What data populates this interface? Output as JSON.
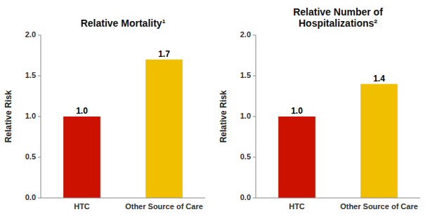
{
  "chart_data": [
    {
      "type": "bar",
      "title": "Relative Mortality¹",
      "categories": [
        "HTC",
        "Other Source of Care"
      ],
      "values": [
        1.0,
        1.7
      ],
      "value_labels": [
        "1.0",
        "1.7"
      ],
      "data_labels": true,
      "colors": [
        "#cc1100",
        "#f0c000"
      ],
      "ylabel": "Relative Risk",
      "ylim": [
        0,
        2.0
      ],
      "yticks": [
        {
          "value": 0.0,
          "label": "0.0"
        },
        0.5,
        {
          "value": 1.0,
          "label": "1.0"
        },
        1.5,
        {
          "value": 2.0,
          "label": "2.0"
        }
      ],
      "grid": false
    },
    {
      "type": "bar",
      "title": "Relative Number of\nHospitalizations²",
      "categories": [
        "HTC",
        "Other Source of Care"
      ],
      "values": [
        1.0,
        1.4
      ],
      "value_labels": [
        "1.0",
        "1.4"
      ],
      "data_labels": true,
      "colors": [
        "#cc1100",
        "#f0c000"
      ],
      "ylabel": "Relative Risk",
      "ylim": [
        0,
        2.0
      ],
      "yticks": [
        {
          "value": 0.0,
          "label": "0.0"
        },
        0.5,
        {
          "value": 1.0,
          "label": "1.0"
        },
        1.5,
        {
          "value": 2.0,
          "label": "2.0"
        }
      ],
      "grid": false
    }
  ]
}
